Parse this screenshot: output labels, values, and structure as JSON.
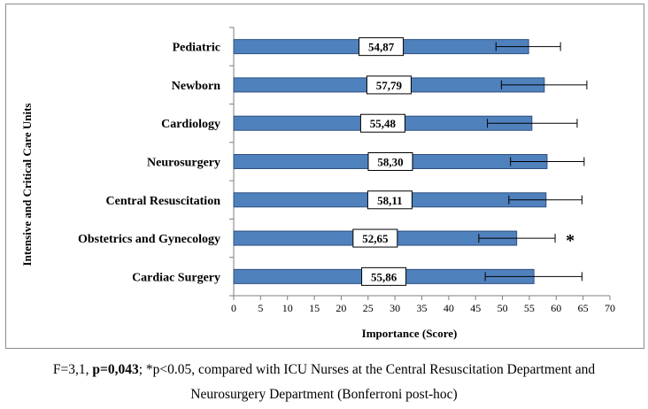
{
  "chart_data": {
    "type": "bar",
    "orientation": "horizontal",
    "categories": [
      "Pediatric",
      "Newborn",
      "Cardiology",
      "Neurosurgery",
      "Central Resuscitation",
      "Obstetrics and Gynecology",
      "Cardiac Surgery"
    ],
    "values": [
      54.87,
      57.79,
      55.48,
      58.3,
      58.11,
      52.65,
      55.86
    ],
    "data_labels": [
      "54,87",
      "57,79",
      "55,48",
      "58,30",
      "58,11",
      "52,65",
      "55,86"
    ],
    "error_low": [
      48.8,
      49.8,
      47.2,
      51.5,
      51.2,
      45.6,
      46.8
    ],
    "error_high": [
      60.8,
      65.7,
      63.9,
      65.2,
      64.8,
      59.8,
      64.8
    ],
    "significance_marker": {
      "category": "Obstetrics and Gynecology",
      "symbol": "*"
    },
    "xlabel": "Importance (Score)",
    "ylabel": "Intensive and Critical Care Units",
    "xlim": [
      0,
      70
    ],
    "xticks": [
      0,
      5,
      10,
      15,
      20,
      25,
      30,
      35,
      40,
      45,
      50,
      55,
      60,
      65,
      70
    ],
    "bar_color": "#4f81bd",
    "bar_edge_color": "#2f4f7f",
    "grid": false
  },
  "caption": {
    "line1_a": "F=3,1, ",
    "line1_bold": "p=0,043",
    "line1_b": "; *p<0.05, compared with ICU Nurses at the Central Resuscitation Department and",
    "line2": "Neurosurgery Department (Bonferroni post-hoc)"
  }
}
